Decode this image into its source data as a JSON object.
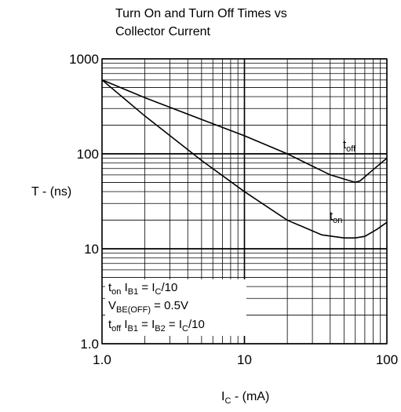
{
  "chart_data": {
    "type": "line",
    "title_lines": [
      "Turn On and Turn Off Times vs",
      "Collector Current"
    ],
    "ylabel": "T - (ns)",
    "xlabel": {
      "main": "I",
      "sub": "C",
      "rest": " - (mA)"
    },
    "xscale": "log",
    "yscale": "log",
    "xlim": [
      1,
      100
    ],
    "ylim": [
      1,
      1000
    ],
    "grid": true,
    "x_ticks": [
      "1.0",
      "10",
      "100"
    ],
    "y_ticks": [
      "1.0",
      "10",
      "100",
      "1000"
    ],
    "series": [
      {
        "key": "toff",
        "label_main": "t",
        "label_sub": "off",
        "x": [
          1,
          2,
          5,
          10,
          20,
          40,
          55,
          60,
          65,
          80,
          100
        ],
        "y": [
          600,
          390,
          230,
          155,
          100,
          60,
          52,
          50,
          52,
          68,
          90
        ]
      },
      {
        "key": "ton",
        "label_main": "t",
        "label_sub": "on",
        "x": [
          1,
          2,
          5,
          10,
          20,
          35,
          50,
          60,
          70,
          85,
          100
        ],
        "y": [
          600,
          250,
          85,
          40,
          20,
          14,
          13,
          13,
          13.5,
          16,
          19
        ]
      }
    ],
    "notes": [
      {
        "parts": [
          [
            "t",
            ""
          ],
          [
            "on",
            "sub"
          ],
          [
            " I",
            ""
          ],
          [
            "B1",
            "sub"
          ],
          [
            " = I",
            ""
          ],
          [
            "C",
            "sub"
          ],
          [
            "/10",
            ""
          ]
        ]
      },
      {
        "parts": [
          [
            "V",
            ""
          ],
          [
            "BE(OFF)",
            "sub"
          ],
          [
            " = 0.5V",
            ""
          ]
        ]
      },
      {
        "parts": [
          [
            "t",
            ""
          ],
          [
            "off",
            "sub"
          ],
          [
            " I",
            ""
          ],
          [
            "B1",
            "sub"
          ],
          [
            " = I",
            ""
          ],
          [
            "B2",
            "sub"
          ],
          [
            " = I",
            ""
          ],
          [
            "C",
            "sub"
          ],
          [
            "/10",
            ""
          ]
        ]
      }
    ]
  }
}
